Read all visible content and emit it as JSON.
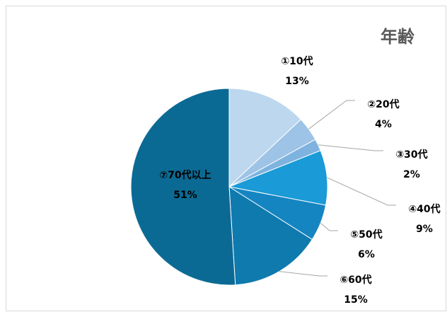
{
  "chart_data": {
    "type": "pie",
    "title": "年齢",
    "categories": [
      "①10代",
      "②20代",
      "③30代",
      "④40代",
      "⑤50代",
      "⑥60代",
      "⑦70代以上"
    ],
    "values": [
      13,
      4,
      2,
      9,
      6,
      15,
      51
    ],
    "value_labels": [
      "13%",
      "4%",
      "2%",
      "9%",
      "6%",
      "15%",
      "51%"
    ],
    "start": "12 o'clock, clockwise",
    "legend": "none",
    "colors": [
      "#bdd7ee",
      "#9dc3e6",
      "#7fb3df",
      "#1a9ad6",
      "#1585c2",
      "#0f7aae",
      "#0b6a94"
    ],
    "leader_line_color": "#a6a6a6"
  }
}
